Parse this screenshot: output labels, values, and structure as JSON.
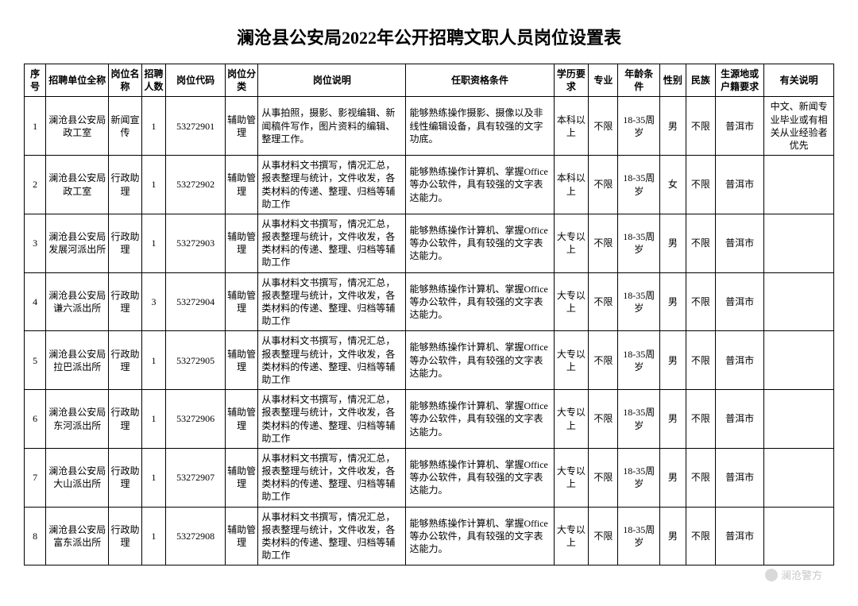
{
  "title": "澜沧县公安局2022年公开招聘文职人员岗位设置表",
  "columns": [
    "序号",
    "招聘单位全称",
    "岗位名称",
    "招聘人数",
    "岗位代码",
    "岗位分类",
    "岗位说明",
    "任职资格条件",
    "学历要求",
    "专业",
    "年龄条件",
    "性别",
    "民族",
    "生源地或户籍要求",
    "有关说明"
  ],
  "col_widths": [
    "25px",
    "72px",
    "38px",
    "28px",
    "68px",
    "38px",
    "170px",
    "170px",
    "40px",
    "34px",
    "48px",
    "30px",
    "34px",
    "56px",
    "80px"
  ],
  "rows": [
    {
      "no": "1",
      "unit": "澜沧县公安局政工室",
      "post": "新闻宣传",
      "num": "1",
      "code": "53272901",
      "cat": "辅助管理",
      "desc": "从事拍照，摄影、影视编辑、新闻稿件写作，图片资料的编辑、整理工作。",
      "qual": "能够熟练操作摄影、摄像以及非线性编辑设备，具有较强的文字功底。",
      "edu": "本科以上",
      "major": "不限",
      "age": "18-35周岁",
      "gender": "男",
      "ethnic": "不限",
      "origin": "普洱市",
      "note": "中文、新闻专业毕业或有相关从业经验者优先"
    },
    {
      "no": "2",
      "unit": "澜沧县公安局政工室",
      "post": "行政助理",
      "num": "1",
      "code": "53272902",
      "cat": "辅助管理",
      "desc": "从事材料文书撰写，情况汇总，报表整理与统计，文件收发，各类材料的传递、整理、归档等辅助工作",
      "qual": "能够熟练操作计算机、掌握Office等办公软件，具有较强的文字表达能力。",
      "edu": "本科以上",
      "major": "不限",
      "age": "18-35周岁",
      "gender": "女",
      "ethnic": "不限",
      "origin": "普洱市",
      "note": ""
    },
    {
      "no": "3",
      "unit": "澜沧县公安局发展河派出所",
      "post": "行政助理",
      "num": "1",
      "code": "53272903",
      "cat": "辅助管理",
      "desc": "从事材料文书撰写，情况汇总，报表整理与统计，文件收发，各类材料的传递、整理、归档等辅助工作",
      "qual": "能够熟练操作计算机、掌握Office等办公软件，具有较强的文字表达能力。",
      "edu": "大专以上",
      "major": "不限",
      "age": "18-35周岁",
      "gender": "男",
      "ethnic": "不限",
      "origin": "普洱市",
      "note": ""
    },
    {
      "no": "4",
      "unit": "澜沧县公安局谦六派出所",
      "post": "行政助理",
      "num": "3",
      "code": "53272904",
      "cat": "辅助管理",
      "desc": "从事材料文书撰写，情况汇总，报表整理与统计，文件收发，各类材料的传递、整理、归档等辅助工作",
      "qual": "能够熟练操作计算机、掌握Office等办公软件，具有较强的文字表达能力。",
      "edu": "大专以上",
      "major": "不限",
      "age": "18-35周岁",
      "gender": "男",
      "ethnic": "不限",
      "origin": "普洱市",
      "note": ""
    },
    {
      "no": "5",
      "unit": "澜沧县公安局拉巴派出所",
      "post": "行政助理",
      "num": "1",
      "code": "53272905",
      "cat": "辅助管理",
      "desc": "从事材料文书撰写，情况汇总，报表整理与统计，文件收发，各类材料的传递、整理、归档等辅助工作",
      "qual": "能够熟练操作计算机、掌握Office等办公软件，具有较强的文字表达能力。",
      "edu": "大专以上",
      "major": "不限",
      "age": "18-35周岁",
      "gender": "男",
      "ethnic": "不限",
      "origin": "普洱市",
      "note": ""
    },
    {
      "no": "6",
      "unit": "澜沧县公安局东河派出所",
      "post": "行政助理",
      "num": "1",
      "code": "53272906",
      "cat": "辅助管理",
      "desc": "从事材料文书撰写，情况汇总，报表整理与统计，文件收发，各类材料的传递、整理、归档等辅助工作",
      "qual": "能够熟练操作计算机、掌握Office等办公软件，具有较强的文字表达能力。",
      "edu": "大专以上",
      "major": "不限",
      "age": "18-35周岁",
      "gender": "男",
      "ethnic": "不限",
      "origin": "普洱市",
      "note": ""
    },
    {
      "no": "7",
      "unit": "澜沧县公安局大山派出所",
      "post": "行政助理",
      "num": "1",
      "code": "53272907",
      "cat": "辅助管理",
      "desc": "从事材料文书撰写，情况汇总，报表整理与统计，文件收发，各类材料的传递、整理、归档等辅助工作",
      "qual": "能够熟练操作计算机、掌握Office等办公软件，具有较强的文字表达能力。",
      "edu": "大专以上",
      "major": "不限",
      "age": "18-35周岁",
      "gender": "男",
      "ethnic": "不限",
      "origin": "普洱市",
      "note": ""
    },
    {
      "no": "8",
      "unit": "澜沧县公安局富东派出所",
      "post": "行政助理",
      "num": "1",
      "code": "53272908",
      "cat": "辅助管理",
      "desc": "从事材料文书撰写，情况汇总，报表整理与统计，文件收发，各类材料的传递、整理、归档等辅助工作",
      "qual": "能够熟练操作计算机、掌握Office等办公软件，具有较强的文字表达能力。",
      "edu": "大专以上",
      "major": "不限",
      "age": "18-35周岁",
      "gender": "男",
      "ethnic": "不限",
      "origin": "普洱市",
      "note": ""
    }
  ],
  "watermark": "澜沧警方"
}
